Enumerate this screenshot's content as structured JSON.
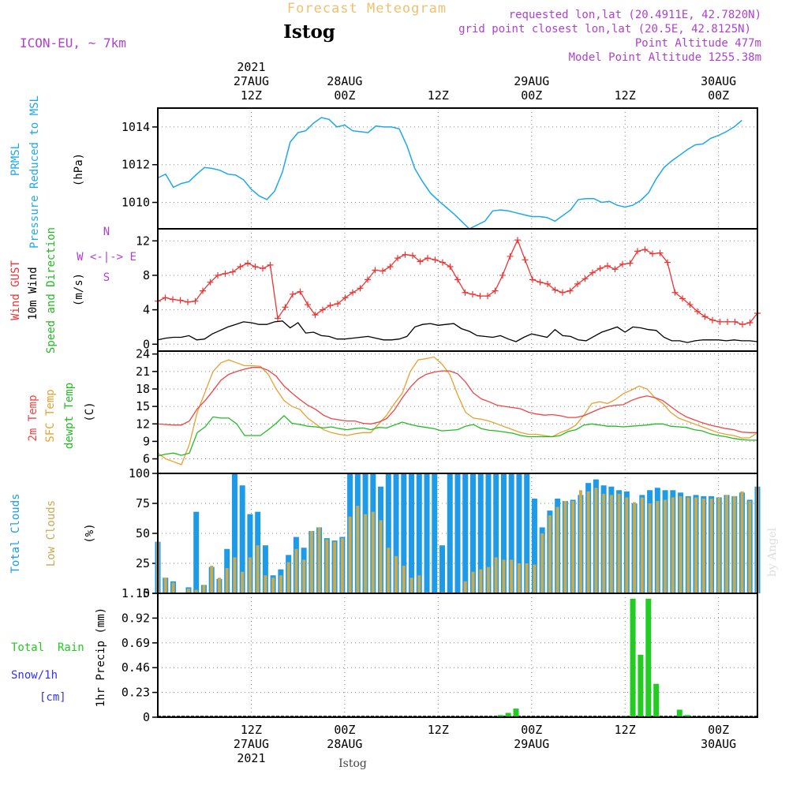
{
  "header": {
    "title": "Forecast Meteogram",
    "location": "Istog",
    "model": "ICON-EU, ~ 7km",
    "requested": "requested lon,lat (20.4911E, 42.7820N)",
    "closest": "grid point closest lon,lat (20.5E, 42.8125N)",
    "point_alt": "Point Altitude 477m",
    "model_alt": "Model Point Altitude 1255.38m",
    "watermark": "by Angel",
    "footer_location": "Istog"
  },
  "time_axis": {
    "top": [
      {
        "t": 12,
        "lines": [
          "2021",
          "27AUG",
          "12Z"
        ]
      },
      {
        "t": 24,
        "lines": [
          "28AUG",
          "00Z"
        ]
      },
      {
        "t": 36,
        "lines": [
          "12Z"
        ]
      },
      {
        "t": 48,
        "lines": [
          "29AUG",
          "00Z"
        ]
      },
      {
        "t": 60,
        "lines": [
          "12Z"
        ]
      },
      {
        "t": 72,
        "lines": [
          "30AUG",
          "00Z"
        ]
      }
    ],
    "bottom": [
      {
        "t": 12,
        "lines": [
          "12Z",
          "27AUG",
          "2021"
        ]
      },
      {
        "t": 24,
        "lines": [
          "00Z",
          "28AUG"
        ]
      },
      {
        "t": 36,
        "lines": [
          "12Z"
        ]
      },
      {
        "t": 48,
        "lines": [
          "00Z",
          "29AUG"
        ]
      },
      {
        "t": 60,
        "lines": [
          "12Z"
        ]
      },
      {
        "t": 72,
        "lines": [
          "00Z",
          "30AUG"
        ]
      }
    ]
  },
  "panel_labels": {
    "pressure": {
      "a": "PRMSL",
      "b": "Pressure Reduced to MSL",
      "unit": "(hPa)"
    },
    "wind": {
      "gust": "Wind GUST",
      "wind": "10m Wind",
      "dir": "Speed and Direction",
      "unit": "(m/s)",
      "compass_n": "N",
      "compass_s": "S",
      "compass_we": "W <-|-> E"
    },
    "temp": {
      "t2m": "2m Temp",
      "sfc": "SFC Temp",
      "dew": "dewpt Temp",
      "unit": "(C)"
    },
    "clouds": {
      "total": "Total Clouds",
      "low": "Low Clouds",
      "unit": "(%)"
    },
    "precip": {
      "rain": "Total  Rain",
      "snow": "Snow/1h",
      "snow_unit": "[cm]",
      "unit": "1hr Precip (mm)"
    }
  },
  "colors": {
    "pressure": "#1ea8e8",
    "gust": "#ee3333",
    "wind": "#000000",
    "t2m": "#ee4444",
    "sfc": "#e8a030",
    "dew": "#22bb22",
    "total_cloud": "#1e9be8",
    "low_cloud": "#c8aa50",
    "rain": "#22cc22",
    "snow": "#3333ee",
    "header_purple": "#b040d0",
    "header_orange": "#f0c070"
  },
  "chart_data": [
    {
      "type": "line",
      "name": "PRMSL",
      "t_range": [
        0,
        77
      ],
      "ylim": [
        1008.6,
        1015.0
      ],
      "yticks": [
        1010,
        1012,
        1014
      ],
      "series": [
        {
          "values": [
            1011.3,
            1011.5,
            1010.8,
            1011.0,
            1011.1,
            1011.5,
            1011.85,
            1011.8,
            1011.7,
            1011.5,
            1011.45,
            1011.2,
            1010.7,
            1010.35,
            1010.15,
            1010.6,
            1011.6,
            1013.2,
            1013.7,
            1013.8,
            1014.2,
            1014.5,
            1014.4,
            1014.0,
            1014.1,
            1013.8,
            1013.75,
            1013.7,
            1014.05,
            1014.0,
            1014.0,
            1013.9,
            1013.0,
            1011.8,
            1011.1,
            1010.5,
            1010.1,
            1009.75,
            1009.4,
            1009.0,
            1008.6,
            1008.8,
            1009.0,
            1009.55,
            1009.6,
            1009.55,
            1009.45,
            1009.35,
            1009.25,
            1009.25,
            1009.2,
            1009.0,
            1009.3,
            1009.6,
            1010.15,
            1010.2,
            1010.2,
            1010.0,
            1010.05,
            1009.85,
            1009.75,
            1009.85,
            1010.1,
            1010.5,
            1011.25,
            1011.85,
            1012.2,
            1012.5,
            1012.8,
            1013.05,
            1013.1,
            1013.4,
            1013.55,
            1013.75,
            1014.0,
            1014.35
          ]
        }
      ]
    },
    {
      "type": "line",
      "name": "wind",
      "t_range": [
        0,
        77
      ],
      "ylim": [
        -0.8,
        13.4
      ],
      "yticks": [
        0,
        4,
        8,
        12
      ],
      "series": [
        {
          "key": "gust",
          "values": [
            5.0,
            5.4,
            5.2,
            5.1,
            4.9,
            5.0,
            6.2,
            7.2,
            8.0,
            8.2,
            8.4,
            9.0,
            9.4,
            9.0,
            8.8,
            9.2,
            3.0,
            4.3,
            5.8,
            6.1,
            4.6,
            3.4,
            4.0,
            4.5,
            4.7,
            5.4,
            6.0,
            6.5,
            7.5,
            8.6,
            8.5,
            9.0,
            10.0,
            10.4,
            10.3,
            9.6,
            10.0,
            9.8,
            9.5,
            9.0,
            7.5,
            6.0,
            5.8,
            5.6,
            5.6,
            6.2,
            8.0,
            10.2,
            12.1,
            9.8,
            7.5,
            7.2,
            7.0,
            6.3,
            6.0,
            6.2,
            7.0,
            7.6,
            8.3,
            8.8,
            9.1,
            8.7,
            9.3,
            9.4,
            10.8,
            11.0,
            10.5,
            10.6,
            9.5,
            6.0,
            5.3,
            4.6,
            3.8,
            3.2,
            2.8,
            2.6,
            2.6,
            2.6,
            2.3,
            2.5,
            3.6
          ]
        },
        {
          "key": "speed",
          "values": [
            0.5,
            0.7,
            0.8,
            0.8,
            1.0,
            0.5,
            0.6,
            1.2,
            1.6,
            2.0,
            2.3,
            2.6,
            2.5,
            2.3,
            2.3,
            2.6,
            2.7,
            1.9,
            2.5,
            1.3,
            1.4,
            1.0,
            0.9,
            0.6,
            0.6,
            0.7,
            0.8,
            0.9,
            0.7,
            0.5,
            0.5,
            0.6,
            0.9,
            2.0,
            2.3,
            2.4,
            2.2,
            2.3,
            2.4,
            1.8,
            1.5,
            1.0,
            0.9,
            0.8,
            1.0,
            0.6,
            0.3,
            0.8,
            1.2,
            1.0,
            0.8,
            1.7,
            1.0,
            0.9,
            0.5,
            0.4,
            0.9,
            1.4,
            1.7,
            2.0,
            1.4,
            2.0,
            1.9,
            1.7,
            1.6,
            0.8,
            0.4,
            0.4,
            0.2,
            0.4,
            0.5,
            0.5,
            0.5,
            0.4,
            0.5,
            0.4,
            0.4,
            0.3
          ]
        }
      ]
    },
    {
      "type": "line",
      "name": "temperature",
      "t_range": [
        0,
        77
      ],
      "ylim": [
        3.5,
        24.5
      ],
      "yticks": [
        6,
        9,
        12,
        15,
        18,
        21,
        24
      ],
      "series": [
        {
          "key": "t2m",
          "values": [
            12.0,
            11.9,
            11.8,
            11.8,
            12.5,
            14.6,
            16.0,
            17.7,
            19.5,
            20.5,
            21.0,
            21.4,
            21.7,
            21.7,
            21.2,
            20.2,
            18.5,
            17.3,
            16.2,
            15.2,
            14.5,
            13.5,
            12.9,
            12.7,
            12.5,
            12.5,
            12.1,
            12.0,
            12.3,
            12.9,
            14.4,
            16.5,
            18.3,
            19.7,
            20.5,
            20.9,
            21.1,
            21.1,
            20.6,
            19.2,
            17.3,
            16.3,
            15.8,
            15.2,
            15.0,
            14.8,
            14.6,
            14.0,
            13.7,
            13.5,
            13.6,
            13.4,
            13.1,
            13.1,
            13.4,
            14.0,
            14.6,
            15.0,
            15.2,
            15.3,
            16.0,
            16.5,
            16.8,
            16.5,
            16.0,
            15.0,
            14.0,
            13.2,
            12.7,
            12.2,
            11.8,
            11.5,
            11.2,
            11.0,
            10.6,
            10.5,
            10.5
          ]
        },
        {
          "key": "sfc",
          "values": [
            7.0,
            6.0,
            5.5,
            5.0,
            8.5,
            14.0,
            17.5,
            21.0,
            22.5,
            23.0,
            22.5,
            22.0,
            22.0,
            21.9,
            20.5,
            18.0,
            16.0,
            15.0,
            14.5,
            13.0,
            12.0,
            11.0,
            10.5,
            10.2,
            10.0,
            10.3,
            10.5,
            10.5,
            12.0,
            13.5,
            15.5,
            17.3,
            21.0,
            23.0,
            23.2,
            23.5,
            22.3,
            20.5,
            17.0,
            14.0,
            13.0,
            12.8,
            12.5,
            12.0,
            11.5,
            11.0,
            10.5,
            10.2,
            10.2,
            10.0,
            9.8,
            10.5,
            11.0,
            11.8,
            13.5,
            15.5,
            15.8,
            15.5,
            16.2,
            17.2,
            17.8,
            18.5,
            18.0,
            16.5,
            15.5,
            14.0,
            13.0,
            12.5,
            12.0,
            11.5,
            11.0,
            10.5,
            10.2,
            10.0,
            9.6,
            9.6,
            10.5
          ]
        },
        {
          "key": "dew",
          "values": [
            6.5,
            6.8,
            7.0,
            6.6,
            7.0,
            10.5,
            11.5,
            13.2,
            13.0,
            13.0,
            12.0,
            10.0,
            10.0,
            10.0,
            11.0,
            12.1,
            13.4,
            12.1,
            11.9,
            11.6,
            11.5,
            11.3,
            11.5,
            11.2,
            11.0,
            11.2,
            11.3,
            11.0,
            11.4,
            11.3,
            11.8,
            12.3,
            11.9,
            11.6,
            11.4,
            11.2,
            10.8,
            10.9,
            11.0,
            11.6,
            11.9,
            11.2,
            10.9,
            10.8,
            10.6,
            10.4,
            10.0,
            9.8,
            9.8,
            9.8,
            9.8,
            10.0,
            10.7,
            11.0,
            11.8,
            12.0,
            11.8,
            11.6,
            11.6,
            11.5,
            11.6,
            11.7,
            11.8,
            12.0,
            12.0,
            11.6,
            11.5,
            11.4,
            11.0,
            10.8,
            10.3,
            10.0,
            9.8,
            9.5,
            9.3,
            9.2,
            9.2
          ]
        }
      ]
    },
    {
      "type": "bar",
      "name": "clouds",
      "t_range": [
        0,
        77
      ],
      "ylim": [
        0,
        100
      ],
      "yticks": [
        0,
        25,
        50,
        75,
        100
      ],
      "series": [
        {
          "key": "total",
          "values": [
            43,
            13,
            10,
            0,
            5,
            68,
            7,
            22,
            12,
            37,
            100,
            90,
            66,
            68,
            40,
            15,
            20,
            32,
            47,
            38,
            52,
            55,
            46,
            44,
            47,
            100,
            100,
            100,
            100,
            89,
            100,
            100,
            100,
            100,
            100,
            100,
            100,
            40,
            100,
            100,
            100,
            100,
            100,
            100,
            100,
            100,
            100,
            100,
            100,
            79,
            55,
            69,
            79,
            77,
            78,
            82,
            92,
            95,
            90,
            89,
            86,
            85,
            75,
            82,
            86,
            88,
            86,
            86,
            84,
            81,
            82,
            81,
            81,
            80,
            82,
            81,
            84,
            78,
            89
          ]
        },
        {
          "key": "low",
          "values": [
            43,
            13,
            9,
            0,
            4,
            3,
            7,
            23,
            13,
            21,
            30,
            18,
            30,
            40,
            15,
            13,
            15,
            26,
            37,
            28,
            52,
            55,
            45,
            43,
            46,
            64,
            73,
            66,
            68,
            61,
            38,
            31,
            23,
            13,
            15,
            1,
            0,
            1,
            0,
            0,
            10,
            18,
            20,
            22,
            30,
            28,
            28,
            25,
            25,
            24,
            50,
            65,
            72,
            77,
            77,
            86,
            85,
            88,
            83,
            82,
            83,
            80,
            76,
            80,
            75,
            77,
            78,
            80,
            81,
            80,
            80,
            79,
            79,
            80,
            82,
            81,
            85,
            77,
            89
          ]
        }
      ]
    },
    {
      "type": "bar",
      "name": "precip",
      "t_range": [
        0,
        77
      ],
      "ylim": [
        0,
        1.15
      ],
      "yticks": [
        0,
        0.23,
        0.46,
        0.69,
        0.92,
        1.15
      ],
      "ytick_labels": [
        "0",
        "0.23",
        "0.46",
        "0.69",
        "0.92",
        "1.15"
      ],
      "series": [
        {
          "key": "rain",
          "points": [
            [
              44,
              0.02
            ],
            [
              45,
              0.04
            ],
            [
              46,
              0.08
            ],
            [
              60,
              0.01
            ],
            [
              61,
              1.1
            ],
            [
              62,
              0.58
            ],
            [
              63,
              1.1
            ],
            [
              64,
              0.31
            ],
            [
              67,
              0.07
            ],
            [
              68,
              0.02
            ]
          ]
        }
      ]
    }
  ]
}
